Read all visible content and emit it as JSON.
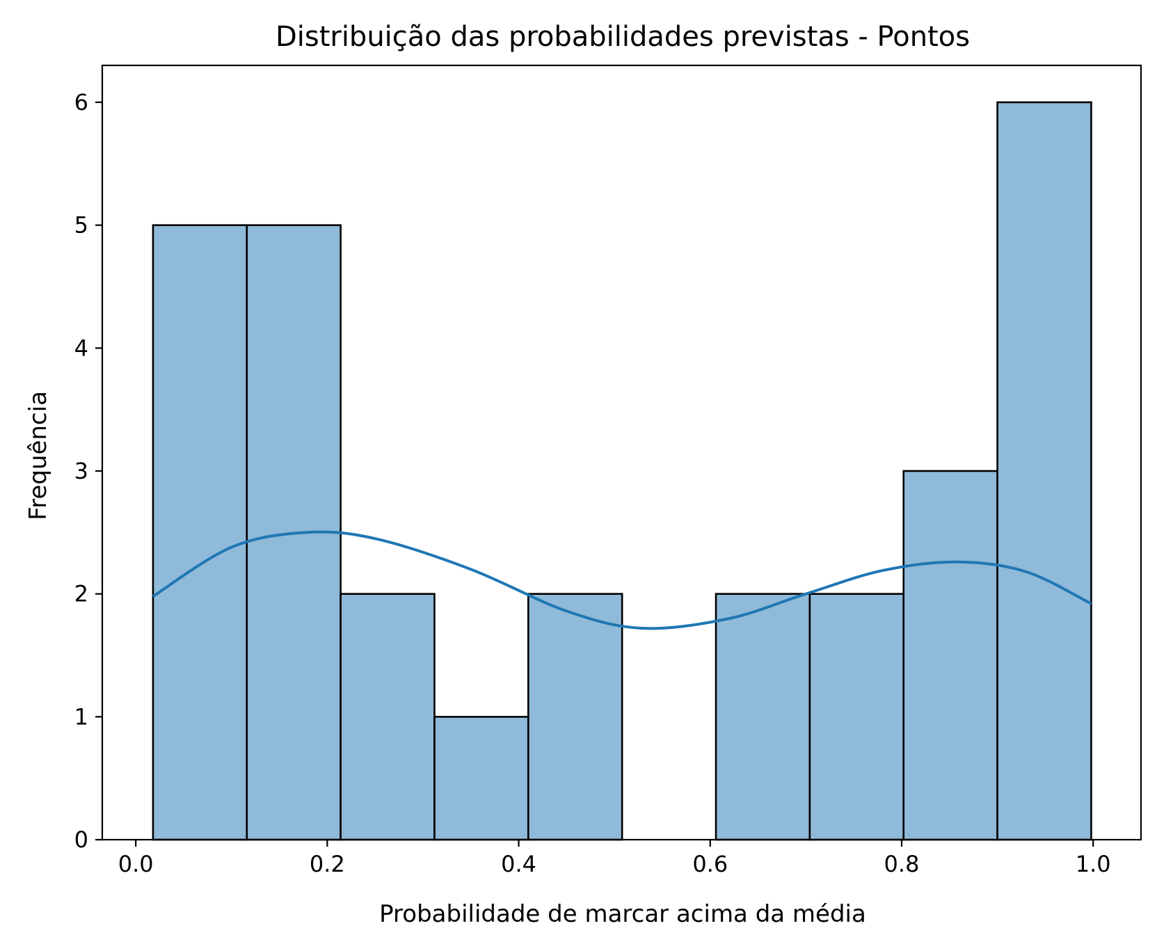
{
  "chart_data": {
    "type": "bar",
    "title": "Distribuição das probabilidades previstas - Pontos",
    "xlabel": "Probabilidade de marcar acima da média",
    "ylabel": "Frequência",
    "xlim": [
      -0.035,
      1.05
    ],
    "ylim": [
      0,
      6.3
    ],
    "xticks": [
      0.0,
      0.2,
      0.4,
      0.6,
      0.8,
      1.0
    ],
    "xtick_labels": [
      "0.0",
      "0.2",
      "0.4",
      "0.6",
      "0.8",
      "1.0"
    ],
    "yticks": [
      0,
      1,
      2,
      3,
      4,
      5,
      6
    ],
    "ytick_labels": [
      "0",
      "1",
      "2",
      "3",
      "4",
      "5",
      "6"
    ],
    "bin_edges": [
      0.018,
      0.116,
      0.214,
      0.312,
      0.41,
      0.508,
      0.606,
      0.704,
      0.802,
      0.9,
      0.998
    ],
    "values": [
      5,
      5,
      2,
      1,
      2,
      0,
      2,
      2,
      3,
      6
    ],
    "bar_fill": "#8fbad9",
    "bar_edge": "#000000",
    "kde": {
      "color": "#1f77b4",
      "x": [
        0.018,
        0.1,
        0.178,
        0.25,
        0.35,
        0.45,
        0.53,
        0.62,
        0.7,
        0.78,
        0.858,
        0.93,
        0.998
      ],
      "y": [
        1.98,
        2.38,
        2.5,
        2.45,
        2.2,
        1.86,
        1.72,
        1.8,
        2.0,
        2.19,
        2.26,
        2.18,
        1.92
      ]
    },
    "grid": false,
    "legend": "none"
  }
}
